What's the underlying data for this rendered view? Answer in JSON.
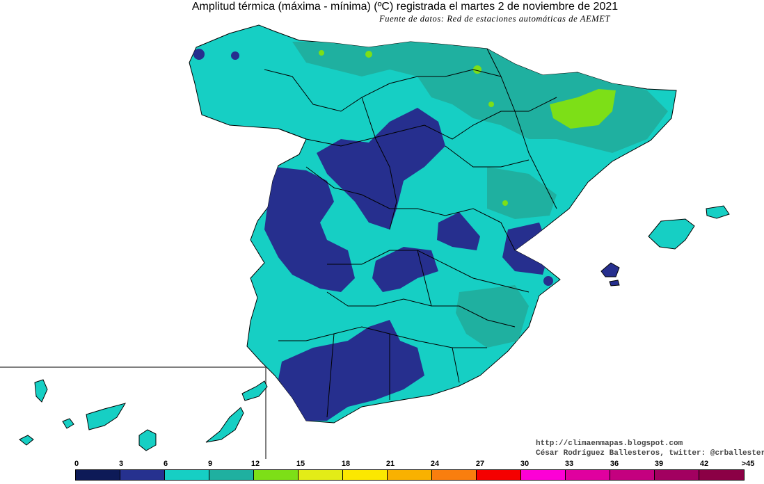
{
  "title": "Amplitud térmica (máxima - mínima) (ºC) registrada el martes 2 de noviembre de 2021",
  "subtitle": "Fuente de datos: Red de estaciones automáticas de AEMET",
  "credits": {
    "blog": "http://climaenmapas.blogspot.com",
    "author": "César Rodríguez Ballesteros, twitter: @crballesteros"
  },
  "legend": {
    "ticks": [
      "0",
      "3",
      "6",
      "9",
      "12",
      "15",
      "18",
      "21",
      "24",
      "27",
      "30",
      "33",
      "36",
      "39",
      "42",
      ">45"
    ],
    "colors": [
      "#0d1a57",
      "#26318f",
      "#16cfc4",
      "#1fb0a0",
      "#7ddf17",
      "#e3ec17",
      "#fce800",
      "#f9b100",
      "#f97e0e",
      "#f50000",
      "#fd00d6",
      "#e0009f",
      "#c4007f",
      "#a20060",
      "#8b0045",
      "#8b1a1a"
    ]
  },
  "colors": {
    "ocean": "#ffffff",
    "amp_3_6": "#262f8e",
    "amp_6_9": "#16cfc4",
    "amp_9_12": "#1fb0a0",
    "amp_12_15": "#7ddf17",
    "borders": "#000000"
  }
}
